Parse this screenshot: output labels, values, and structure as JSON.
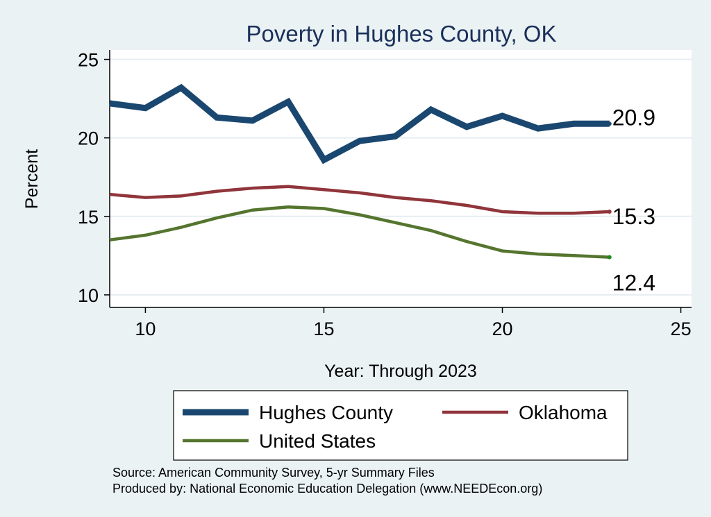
{
  "chart_data": {
    "type": "line",
    "title": "Poverty in Hughes County, OK",
    "xlabel": "Year: Through 2023",
    "ylabel": "Percent",
    "xlim": [
      9,
      25.3
    ],
    "ylim": [
      9.2,
      25.6
    ],
    "xticks": [
      10,
      15,
      20,
      25
    ],
    "yticks": [
      10,
      15,
      20,
      25
    ],
    "grid": "horizontal",
    "legend_position": "bottom",
    "x": [
      9,
      10,
      11,
      12,
      13,
      14,
      15,
      16,
      17,
      18,
      19,
      20,
      21,
      22,
      23
    ],
    "series": [
      {
        "name": "Hughes County",
        "color": "#1a476f",
        "end_label": "20.9",
        "values": [
          22.2,
          21.9,
          23.2,
          21.3,
          21.1,
          22.3,
          18.6,
          19.8,
          20.1,
          21.8,
          20.7,
          21.4,
          20.6,
          20.9,
          20.9
        ]
      },
      {
        "name": "Oklahoma",
        "color": "#90353b",
        "end_label": "15.3",
        "values": [
          16.4,
          16.2,
          16.3,
          16.6,
          16.8,
          16.9,
          16.7,
          16.5,
          16.2,
          16.0,
          15.7,
          15.3,
          15.2,
          15.2,
          15.3
        ]
      },
      {
        "name": "United States",
        "color": "#55752f",
        "end_label": "12.4",
        "values": [
          13.5,
          13.8,
          14.3,
          14.9,
          15.4,
          15.6,
          15.5,
          15.1,
          14.6,
          14.1,
          13.4,
          12.8,
          12.6,
          12.5,
          12.4
        ]
      }
    ]
  },
  "footer": {
    "source_line": "Source: American Community Survey, 5-yr Summary Files",
    "produced_line": "Produced by: National Economic Education Delegation (www.NEEDEcon.org)"
  }
}
